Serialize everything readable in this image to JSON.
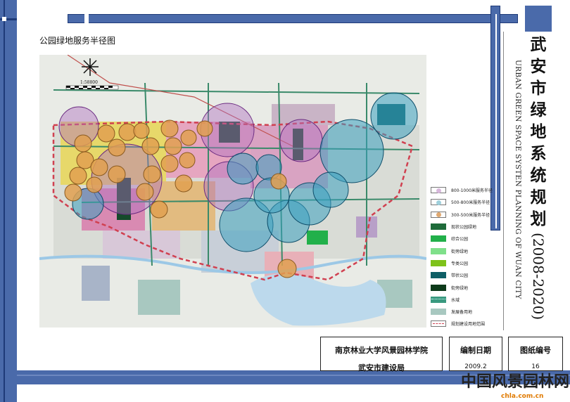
{
  "map_title": "公园绿地服务半径图",
  "scale_label": "1:58800",
  "title": {
    "chars": [
      "武",
      "安",
      "市",
      "绿",
      "地",
      "系",
      "统",
      "规",
      "划"
    ],
    "years": "(2008-2020)",
    "english": "URBAN GREEN SPACE SYSTEN PLANNING OF WUAN CITY"
  },
  "legend": [
    {
      "label": "800-1000米服务半径",
      "swatch": "circle",
      "color": "#d8b8dc"
    },
    {
      "label": "500-800米服务半径",
      "swatch": "circle",
      "color": "#9fd0dc"
    },
    {
      "label": "300-500米服务半径",
      "swatch": "circle",
      "color": "#e0a870"
    },
    {
      "label": "现状公园绿地",
      "swatch": "fill",
      "color": "#1f6b3a"
    },
    {
      "label": "综合公园",
      "swatch": "fill",
      "color": "#22b04a"
    },
    {
      "label": "街旁绿地",
      "swatch": "fill",
      "color": "#7fe08a"
    },
    {
      "label": "专类公园",
      "swatch": "fill",
      "color": "#7ec21a"
    },
    {
      "label": "带状公园",
      "swatch": "fill",
      "color": "#0e5f66"
    },
    {
      "label": "街旁绿地",
      "swatch": "fill",
      "color": "#0d3a1a"
    },
    {
      "label": "水域",
      "swatch": "water",
      "color": "#3a9a80"
    },
    {
      "label": "发展备用地",
      "swatch": "fill",
      "color": "#a8c8c0"
    },
    {
      "label": "规划建设用地范围",
      "swatch": "dash",
      "color": "#d04050"
    }
  ],
  "title_block": {
    "org1": "南京林业大学风景园林学院",
    "org2": "武安市建设局",
    "date_label": "编制日期",
    "date_value": "2009.2",
    "sheet_label": "图纸编号",
    "sheet_value": "16"
  },
  "watermark": {
    "text": "中国风景园林网",
    "url": "chla.com.cn"
  },
  "colors": {
    "frame_blue": "#4a6aaa",
    "boundary": "#d04050"
  }
}
